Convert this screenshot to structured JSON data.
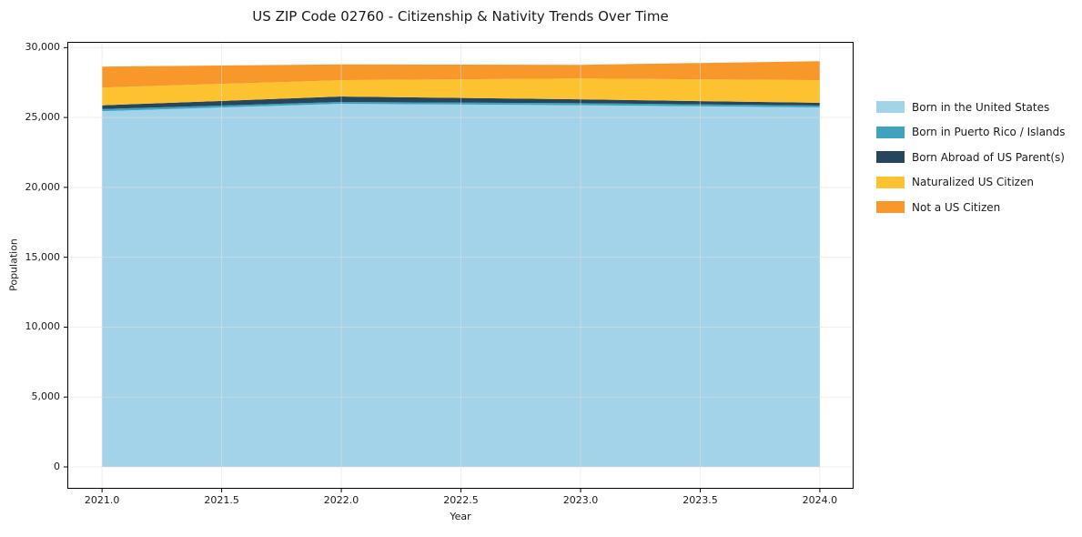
{
  "chart_data": {
    "type": "area",
    "stacked": true,
    "title": "US ZIP Code 02760 - Citizenship & Nativity Trends Over Time",
    "xlabel": "Year",
    "ylabel": "Population",
    "x": [
      2021,
      2022,
      2023,
      2024
    ],
    "series": [
      {
        "name": "Born in the United States",
        "color": "#a3d3e8",
        "values": [
          25450,
          25980,
          25880,
          25720
        ]
      },
      {
        "name": "Born in Puerto Rico / Islands",
        "color": "#3fa3c0",
        "values": [
          150,
          130,
          140,
          130
        ]
      },
      {
        "name": "Born Abroad of US Parent(s)",
        "color": "#25465c",
        "values": [
          270,
          390,
          280,
          200
        ]
      },
      {
        "name": "Naturalized US Citizen",
        "color": "#fcc22f",
        "values": [
          1270,
          1170,
          1490,
          1620
        ]
      },
      {
        "name": "Not a US Citizen",
        "color": "#f8982a",
        "values": [
          1500,
          1130,
          980,
          1360
        ]
      }
    ],
    "xlim": [
      2020.855,
      2024.141
    ],
    "ylim": [
      -1563,
      30411
    ],
    "x_ticks": [
      2021.0,
      2021.5,
      2022.0,
      2022.5,
      2023.0,
      2023.5,
      2024.0
    ],
    "x_tick_labels": [
      "2021.0",
      "2021.5",
      "2022.0",
      "2022.5",
      "2023.0",
      "2023.5",
      "2024.0"
    ],
    "y_ticks": [
      0,
      5000,
      10000,
      15000,
      20000,
      25000,
      30000
    ],
    "y_tick_labels": [
      "0",
      "5,000",
      "10,000",
      "15,000",
      "20,000",
      "25,000",
      "30,000"
    ],
    "grid": true,
    "grid_color": "#e0e0e0",
    "spine_color": "#000000",
    "text_color": "#1a1a1a",
    "legend": {
      "position": "right-outside",
      "frame": false
    }
  }
}
